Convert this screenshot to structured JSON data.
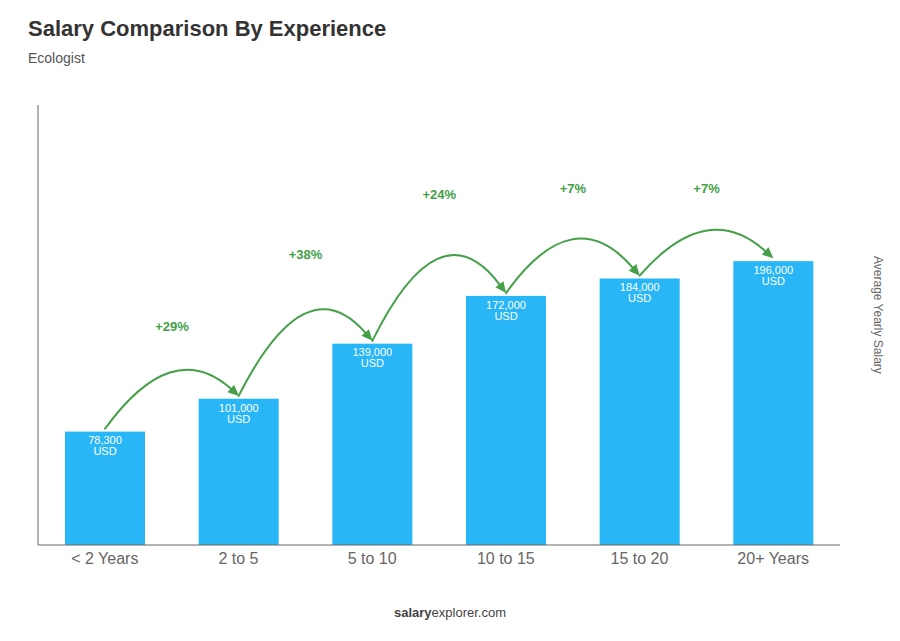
{
  "chart_data": {
    "type": "bar",
    "title": "Salary Comparison By Experience",
    "subtitle": "Ecologist",
    "ylabel": "Average Yearly Salary",
    "footer": [
      "salary",
      "explorer.com"
    ],
    "categories": [
      "< 2 Years",
      "2 to 5",
      "5 to 10",
      "10 to 15",
      "15 to 20",
      "20+ Years"
    ],
    "values": [
      78300,
      101000,
      139000,
      172000,
      184000,
      196000
    ],
    "value_labels": [
      "78,300 USD",
      "101,000 USD",
      "139,000 USD",
      "172,000 USD",
      "184,000 USD",
      "196,000 USD"
    ],
    "data_labels": true,
    "color": "#29b6f6",
    "ylim": [
      0,
      303800
    ],
    "tick_labels": "x",
    "grid": false,
    "annotations": [
      {
        "text": "+29%",
        "color": "#43a047"
      },
      {
        "text": "+38%",
        "color": "#43a047"
      },
      {
        "text": "+24%",
        "color": "#43a047"
      },
      {
        "text": "+7%",
        "color": "#43a047"
      },
      {
        "text": "+7%",
        "color": "#43a047"
      }
    ]
  }
}
